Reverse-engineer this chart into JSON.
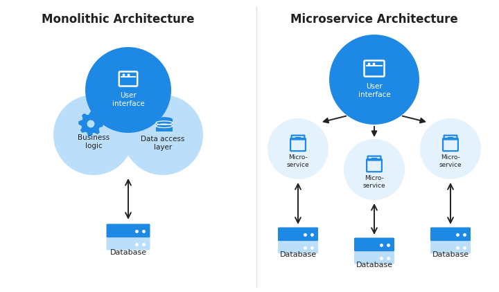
{
  "bg_color": "#ffffff",
  "blue_medium": "#1e88e5",
  "blue_light": "#bbdefb",
  "blue_lighter": "#e3f2fd",
  "arrow_color": "#212121",
  "text_dark": "#212121",
  "mono_title": "Monolithic Architecture",
  "micro_title": "Microservice Architecture",
  "db_label": "Database",
  "micro_service_label": "Micro-\nservice",
  "title_fontsize": 12,
  "label_fontsize": 7.5,
  "db_label_fontsize": 8
}
